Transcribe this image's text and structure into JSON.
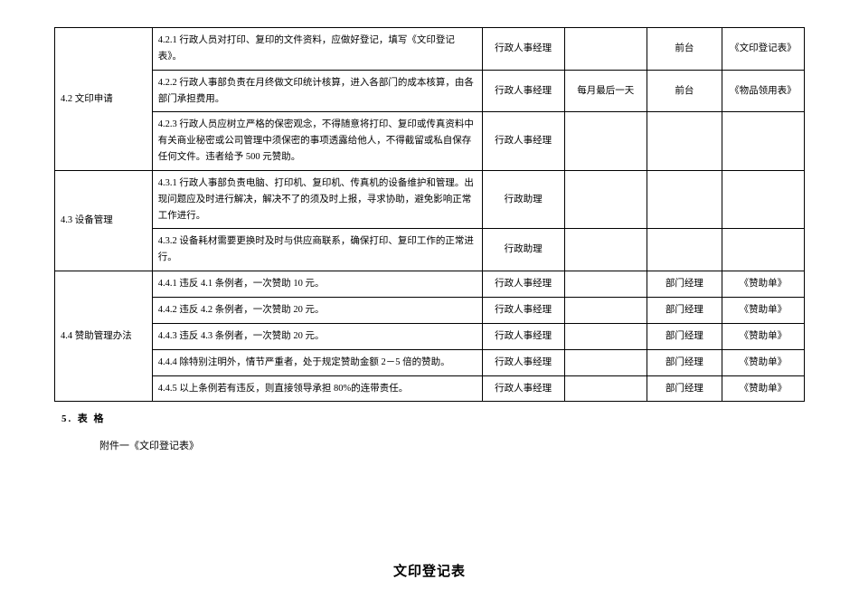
{
  "table": {
    "rows": [
      {
        "col1": "",
        "col2": "4.2.1 行政人员对打印、复印的文件资料，应做好登记，填写《文印登记表》。",
        "col3": "行政人事经理",
        "col4": "",
        "col5": "前台",
        "col6": "《文印登记表》"
      },
      {
        "col1": "4.2 文印申请",
        "col2": "4.2.2 行政人事部负责在月终做文印统计核算，进入各部门的成本核算，由各部门承担费用。",
        "col3": "行政人事经理",
        "col4": "每月最后一天",
        "col5": "前台",
        "col6": "《物品领用表》"
      },
      {
        "col1": "",
        "col2": "4.2.3 行政人员应树立严格的保密观念，不得随意将打印、复印或传真资料中有关商业秘密或公司管理中须保密的事项透露给他人，不得截留或私自保存任何文件。违者给予 500 元赞助。",
        "col3": "行政人事经理",
        "col4": "",
        "col5": "",
        "col6": ""
      },
      {
        "col1": "4.3 设备管理",
        "col2": "4.3.1 行政人事部负责电脑、打印机、复印机、传真机的设备维护和管理。出现问题应及时进行解决，解决不了的须及时上报，寻求协助，避免影响正常工作进行。",
        "col3": "行政助理",
        "col4": "",
        "col5": "",
        "col6": ""
      },
      {
        "col1": "",
        "col2": "4.3.2 设备耗材需要更换时及时与供应商联系，确保打印、复印工作的正常进行。",
        "col3": "行政助理",
        "col4": "",
        "col5": "",
        "col6": ""
      },
      {
        "col1": "4.4 赞助管理办法",
        "col2": "4.4.1 违反 4.1 条例者，一次赞助 10 元。",
        "col3": "行政人事经理",
        "col4": "",
        "col5": "部门经理",
        "col6": "《赞助单》"
      },
      {
        "col1": "",
        "col2": "4.4.2 违反 4.2 条例者，一次赞助 20 元。",
        "col3": "行政人事经理",
        "col4": "",
        "col5": "部门经理",
        "col6": "《赞助单》"
      },
      {
        "col1": "",
        "col2": "4.4.3 违反 4.3 条例者，一次赞助 20 元。",
        "col3": "行政人事经理",
        "col4": "",
        "col5": "部门经理",
        "col6": "《赞助单》"
      },
      {
        "col1": "",
        "col2": "4.4.4 除特别注明外，情节严重者，处于规定赞助金额 2－5 倍的赞助。",
        "col3": "行政人事经理",
        "col4": "",
        "col5": "部门经理",
        "col6": "《赞助单》"
      },
      {
        "col1": "",
        "col2": "4.4.5 以上条例若有违反，则直接领导承担 80%的连带责任。",
        "col3": "行政人事经理",
        "col4": "",
        "col5": "部门经理",
        "col6": "《赞助单》"
      }
    ]
  },
  "section5": {
    "num": "5.",
    "title": "表 格"
  },
  "attachment": "附件一《文印登记表》",
  "formTitle": "文印登记表"
}
